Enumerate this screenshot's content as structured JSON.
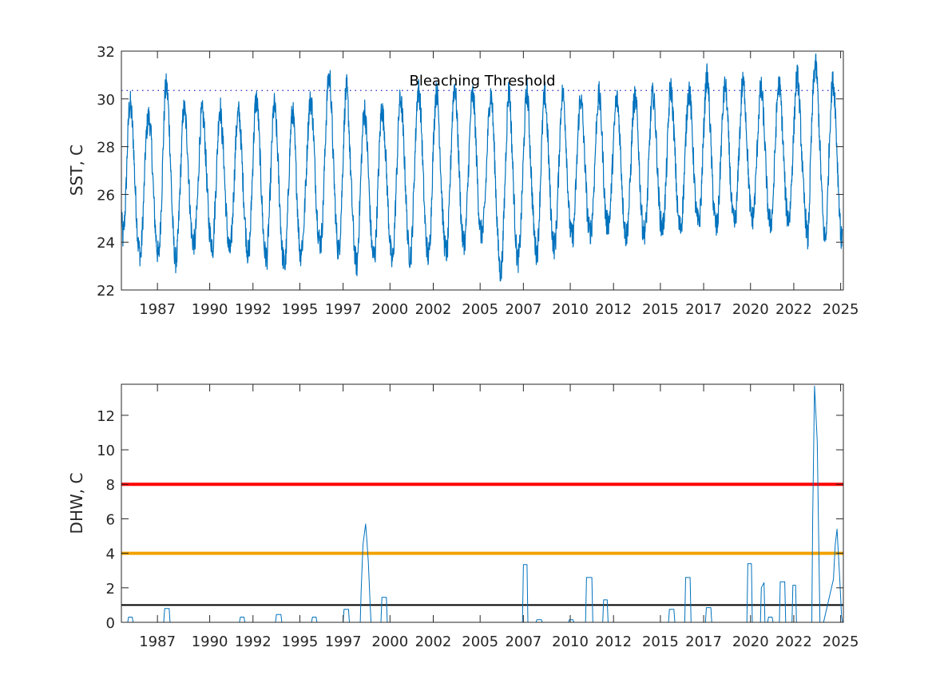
{
  "chart_data": [
    {
      "type": "line",
      "ylabel": "SST, C",
      "ylim": [
        22,
        32
      ],
      "yticks": [
        22,
        24,
        26,
        28,
        30,
        32
      ],
      "x_ticklabels": [
        "1987",
        "1990",
        "1992",
        "1995",
        "1997",
        "2000",
        "2002",
        "2005",
        "2007",
        "2010",
        "2012",
        "2015",
        "2017",
        "2020",
        "2022",
        "2025"
      ],
      "xlim": [
        1985.0,
        2025.05
      ],
      "grid": false,
      "series": [
        {
          "color": "#0072BD",
          "samples_per_year": 12,
          "x_start": 1985.0,
          "values": [
            25.2,
            24.2,
            24.8,
            26.0,
            28.0,
            29.5,
            29.8,
            29.2,
            28.2,
            26.5,
            25.2,
            24.0,
            23.6,
            23.4,
            24.6,
            26.0,
            27.8,
            28.8,
            29.3,
            29.0,
            28.2,
            26.6,
            25.2,
            24.2,
            23.6,
            23.4,
            24.6,
            26.3,
            28.4,
            30.2,
            30.6,
            30.0,
            28.6,
            26.8,
            25.0,
            23.8,
            23.2,
            23.4,
            24.6,
            26.2,
            27.8,
            29.4,
            29.6,
            29.0,
            28.0,
            26.4,
            25.0,
            24.2,
            24.0,
            24.0,
            25.0,
            26.2,
            28.0,
            29.3,
            29.4,
            29.0,
            27.8,
            26.4,
            25.0,
            24.3,
            24.0,
            23.8,
            25.0,
            26.4,
            28.0,
            29.5,
            29.6,
            28.6,
            27.8,
            26.2,
            25.0,
            24.0,
            23.6,
            23.8,
            25.0,
            26.4,
            28.0,
            29.1,
            29.5,
            29.0,
            27.8,
            26.4,
            25.2,
            24.2,
            23.6,
            23.5,
            24.7,
            26.4,
            28.2,
            29.7,
            30.0,
            29.4,
            28.0,
            26.5,
            25.0,
            23.8,
            23.4,
            23.4,
            24.6,
            26.0,
            27.8,
            29.4,
            29.8,
            29.0,
            27.8,
            26.2,
            24.8,
            23.6,
            23.2,
            23.0,
            24.0,
            25.8,
            27.6,
            29.0,
            29.6,
            28.8,
            27.4,
            25.8,
            24.4,
            23.4,
            23.8,
            24.2,
            25.4,
            26.8,
            28.4,
            29.6,
            30.0,
            29.6,
            28.4,
            26.8,
            25.4,
            24.4,
            24.0,
            24.0,
            25.0,
            26.8,
            28.6,
            30.2,
            30.9,
            30.8,
            29.4,
            27.6,
            26.0,
            24.6,
            23.8,
            23.6,
            24.8,
            26.4,
            28.4,
            30.0,
            30.5,
            29.6,
            28.0,
            26.4,
            25.0,
            23.8,
            23.2,
            23.0,
            24.4,
            26.0,
            27.8,
            29.2,
            29.6,
            28.8,
            27.6,
            26.0,
            24.6,
            23.6,
            23.4,
            23.6,
            25.0,
            26.6,
            28.4,
            29.6,
            29.4,
            28.8,
            27.6,
            26.2,
            24.8,
            23.8,
            23.2,
            23.4,
            24.8,
            26.4,
            28.2,
            29.8,
            30.0,
            29.4,
            28.0,
            26.6,
            25.0,
            23.8,
            23.4,
            23.6,
            25.0,
            26.8,
            28.6,
            30.2,
            30.4,
            29.8,
            28.4,
            26.6,
            25.0,
            24.0,
            23.4,
            23.6,
            24.8,
            26.8,
            28.6,
            30.0,
            30.4,
            29.6,
            28.0,
            26.4,
            25.0,
            24.0,
            23.6,
            23.6,
            25.0,
            26.8,
            28.8,
            30.2,
            30.6,
            29.8,
            28.4,
            26.8,
            25.2,
            24.2,
            24.0,
            24.2,
            25.4,
            27.0,
            28.6,
            30.0,
            30.2,
            29.6,
            28.2,
            26.6,
            25.2,
            24.4,
            24.4,
            24.6,
            25.6,
            27.0,
            28.6,
            29.8,
            30.3,
            29.6,
            28.2,
            26.6,
            25.0,
            23.6,
            22.8,
            22.8,
            24.0,
            25.8,
            27.8,
            29.6,
            30.6,
            29.6,
            28.0,
            26.4,
            24.8,
            23.6,
            23.2,
            23.6,
            24.8,
            26.4,
            28.2,
            29.8,
            30.4,
            29.6,
            28.0,
            26.6,
            25.2,
            24.2,
            23.6,
            23.6,
            24.8,
            26.6,
            28.4,
            29.8,
            30.2,
            29.4,
            28.2,
            26.6,
            25.2,
            24.2,
            23.8,
            24.0,
            25.2,
            26.8,
            28.6,
            30.0,
            30.3,
            29.6,
            28.2,
            26.6,
            25.2,
            24.4,
            24.2,
            24.4,
            25.6,
            27.0,
            28.6,
            29.8,
            30.0,
            29.4,
            28.0,
            26.8,
            25.4,
            24.6,
            24.4,
            24.6,
            25.6,
            27.0,
            28.6,
            29.8,
            30.2,
            29.6,
            28.4,
            26.8,
            25.4,
            24.8,
            24.8,
            25.0,
            26.0,
            27.4,
            28.6,
            29.8,
            30.0,
            29.4,
            28.2,
            26.8,
            25.4,
            24.6,
            24.2,
            24.6,
            25.6,
            27.0,
            28.6,
            29.8,
            30.1,
            29.6,
            28.4,
            26.8,
            25.4,
            24.6,
            24.4,
            24.6,
            25.6,
            27.2,
            28.8,
            30.0,
            30.2,
            29.6,
            28.4,
            26.8,
            25.6,
            24.8,
            24.6,
            24.8,
            25.8,
            27.2,
            28.8,
            30.2,
            30.5,
            29.6,
            28.4,
            27.0,
            25.6,
            24.8,
            24.6,
            24.8,
            25.8,
            27.2,
            28.8,
            30.0,
            30.4,
            29.8,
            28.6,
            27.2,
            25.8,
            25.0,
            24.8,
            25.0,
            26.0,
            27.6,
            29.2,
            30.6,
            31.0,
            30.2,
            28.8,
            27.2,
            25.8,
            25.0,
            24.6,
            24.8,
            26.0,
            27.6,
            29.0,
            30.2,
            30.6,
            30.0,
            28.6,
            27.2,
            25.8,
            25.0,
            24.8,
            25.0,
            26.0,
            27.6,
            29.0,
            30.4,
            30.7,
            30.2,
            28.8,
            27.4,
            26.0,
            25.2,
            25.0,
            25.2,
            26.2,
            27.6,
            29.0,
            30.2,
            30.4,
            29.8,
            28.6,
            27.2,
            25.8,
            25.0,
            24.8,
            25.0,
            26.0,
            27.6,
            29.2,
            30.4,
            30.6,
            30.0,
            28.8,
            27.4,
            26.0,
            25.2,
            25.0,
            25.2,
            26.4,
            27.8,
            29.2,
            30.6,
            31.0,
            30.4,
            29.0,
            27.6,
            26.2,
            25.4,
            24.6,
            24.0,
            25.6,
            27.8,
            29.6,
            31.0,
            31.5,
            31.0,
            29.6,
            28.0,
            26.4,
            25.0,
            24.2,
            24.2,
            25.6,
            27.6,
            29.4,
            30.6,
            30.7,
            30.0,
            28.4,
            26.8,
            25.4,
            24.2,
            24.0
          ]
        }
      ],
      "annotations": [
        {
          "text": "Bleaching Threshold",
          "y": 30.35,
          "style": "dotted",
          "color": "#3333cc"
        }
      ]
    },
    {
      "type": "line",
      "ylabel": "DHW, C",
      "ylim": [
        0,
        13.8
      ],
      "yticks": [
        0,
        2,
        4,
        6,
        8,
        10,
        12
      ],
      "x_ticklabels": [
        "1987",
        "1990",
        "1992",
        "1995",
        "1997",
        "2000",
        "2002",
        "2005",
        "2007",
        "2010",
        "2012",
        "2015",
        "2017",
        "2020",
        "2022",
        "2025"
      ],
      "xlim": [
        1985.0,
        2025.05
      ],
      "grid": false,
      "series": [
        {
          "color": "#0072BD",
          "x": [
            1985.0,
            1985.35,
            1985.4,
            1985.6,
            1985.65,
            1987.35,
            1987.4,
            1987.65,
            1987.7,
            1991.55,
            1991.6,
            1991.8,
            1991.85,
            1993.55,
            1993.6,
            1993.85,
            1993.9,
            1995.55,
            1995.6,
            1995.8,
            1995.85,
            1997.3,
            1997.35,
            1997.6,
            1997.65,
            1998.25,
            1998.3,
            1998.4,
            1998.55,
            1998.6,
            1998.7,
            1998.8,
            1998.85,
            1999.4,
            1999.45,
            1999.7,
            1999.75,
            2007.25,
            2007.3,
            2007.5,
            2007.55,
            2008.0,
            2008.05,
            2008.3,
            2008.35,
            2009.8,
            2009.85,
            2010.05,
            2010.1,
            2010.75,
            2010.8,
            2011.1,
            2011.15,
            2011.7,
            2011.75,
            2011.95,
            2012.0,
            2015.35,
            2015.4,
            2015.65,
            2015.7,
            2016.25,
            2016.3,
            2016.55,
            2016.6,
            2017.4,
            2017.45,
            2017.7,
            2017.75,
            2019.7,
            2019.75,
            2019.95,
            2020.0,
            2020.45,
            2020.5,
            2020.65,
            2020.7,
            2020.85,
            2020.9,
            2021.1,
            2021.15,
            2021.5,
            2021.55,
            2021.8,
            2021.85,
            2022.2,
            2022.25,
            2022.4,
            2022.45,
            2023.3,
            2023.35,
            2023.45,
            2023.6,
            2023.75,
            2023.8,
            2023.95,
            2024.5,
            2024.6,
            2024.7,
            2024.85,
            2024.95,
            2025.0
          ],
          "values": [
            0,
            0,
            0.3,
            0.3,
            0,
            0,
            0.8,
            0.8,
            0,
            0,
            0.3,
            0.3,
            0,
            0,
            0.45,
            0.45,
            0,
            0,
            0.3,
            0.3,
            0,
            0,
            0.75,
            0.75,
            0,
            0,
            1.8,
            4.5,
            5.7,
            5.0,
            3.5,
            1.0,
            0,
            0,
            1.45,
            1.45,
            0,
            0,
            3.35,
            3.35,
            0,
            0,
            0.15,
            0.15,
            0,
            0,
            0.15,
            0.15,
            0,
            0,
            2.6,
            2.6,
            0,
            0,
            1.3,
            1.3,
            0,
            0,
            0.75,
            0.75,
            0,
            0,
            2.6,
            2.6,
            0,
            0,
            0.85,
            0.85,
            0,
            0,
            3.4,
            3.4,
            0,
            0,
            2.0,
            2.3,
            0,
            0,
            0.3,
            0.3,
            0,
            0,
            2.35,
            2.35,
            0,
            0,
            2.15,
            2.15,
            0,
            0,
            6.0,
            13.7,
            10.5,
            0,
            0,
            0,
            2.5,
            4.5,
            5.4,
            2.5,
            0.4,
            0
          ],
          "line_width": 1
        }
      ],
      "reference_lines": [
        {
          "y": 1,
          "color": "#000000",
          "width": 2
        },
        {
          "y": 4,
          "color": "#f2a100",
          "width": 4
        },
        {
          "y": 8,
          "color": "#ff0000",
          "width": 4
        }
      ]
    }
  ]
}
